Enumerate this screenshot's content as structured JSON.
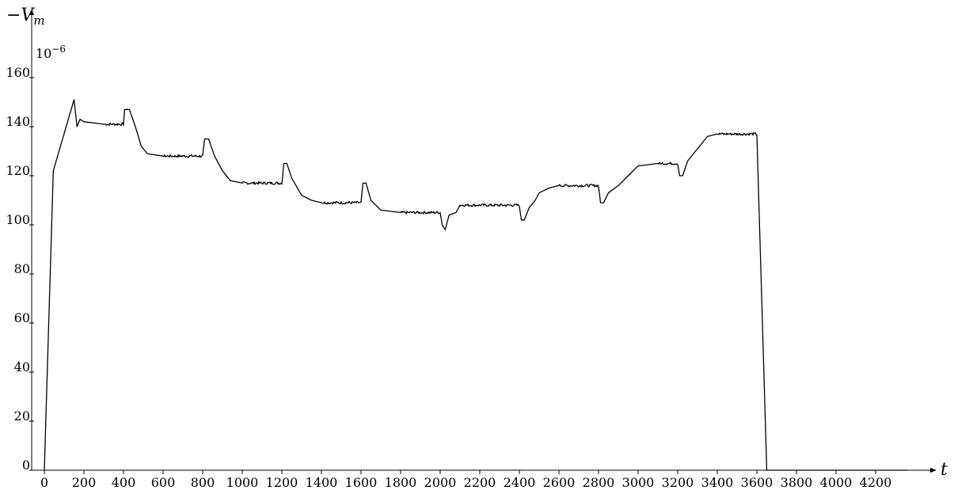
{
  "chart_data": {
    "type": "line",
    "ylabel_main": "−V",
    "ylabel_sub": "m",
    "xlabel": "t",
    "y_scale_label": "10",
    "y_scale_exp": "−6",
    "xlim": [
      -40,
      4360
    ],
    "ylim": [
      0,
      172
    ],
    "x_ticks": [
      0,
      200,
      400,
      600,
      800,
      1000,
      1200,
      1400,
      1600,
      1800,
      2000,
      2200,
      2400,
      2600,
      2800,
      3000,
      3200,
      3400,
      3600,
      3800,
      4000,
      4200
    ],
    "y_ticks": [
      0,
      20,
      40,
      60,
      80,
      100,
      120,
      140,
      160
    ],
    "grid": false,
    "series": [
      {
        "color": "#000000",
        "points": [
          [
            0,
            0
          ],
          [
            45,
            122
          ],
          [
            150,
            151
          ],
          [
            165,
            140
          ],
          [
            180,
            143
          ],
          [
            200,
            142
          ],
          [
            300,
            141
          ],
          [
            400,
            141
          ],
          [
            405,
            147
          ],
          [
            430,
            147
          ],
          [
            460,
            140
          ],
          [
            490,
            132
          ],
          [
            520,
            129
          ],
          [
            600,
            128
          ],
          [
            700,
            128
          ],
          [
            800,
            128
          ],
          [
            810,
            135
          ],
          [
            830,
            135
          ],
          [
            860,
            128
          ],
          [
            900,
            122
          ],
          [
            940,
            118
          ],
          [
            1000,
            117
          ],
          [
            1100,
            117
          ],
          [
            1200,
            117
          ],
          [
            1210,
            125
          ],
          [
            1225,
            125
          ],
          [
            1250,
            119
          ],
          [
            1300,
            112
          ],
          [
            1350,
            110
          ],
          [
            1400,
            109
          ],
          [
            1500,
            109
          ],
          [
            1600,
            109
          ],
          [
            1610,
            117
          ],
          [
            1625,
            117
          ],
          [
            1650,
            110
          ],
          [
            1700,
            106
          ],
          [
            1800,
            105
          ],
          [
            1900,
            105
          ],
          [
            2000,
            105
          ],
          [
            2010,
            100
          ],
          [
            2025,
            98
          ],
          [
            2045,
            104
          ],
          [
            2080,
            105
          ],
          [
            2100,
            108
          ],
          [
            2200,
            108
          ],
          [
            2300,
            108
          ],
          [
            2400,
            108
          ],
          [
            2410,
            102
          ],
          [
            2425,
            102
          ],
          [
            2450,
            107
          ],
          [
            2480,
            110
          ],
          [
            2500,
            113
          ],
          [
            2550,
            115
          ],
          [
            2600,
            116
          ],
          [
            2700,
            116
          ],
          [
            2800,
            116
          ],
          [
            2810,
            109
          ],
          [
            2825,
            109
          ],
          [
            2850,
            113
          ],
          [
            2900,
            116
          ],
          [
            2950,
            120
          ],
          [
            3000,
            124
          ],
          [
            3100,
            125
          ],
          [
            3200,
            125
          ],
          [
            3210,
            120
          ],
          [
            3225,
            120
          ],
          [
            3250,
            126
          ],
          [
            3300,
            131
          ],
          [
            3350,
            136
          ],
          [
            3400,
            137
          ],
          [
            3500,
            137
          ],
          [
            3600,
            137
          ],
          [
            3650,
            0
          ],
          [
            4200,
            0
          ],
          [
            4360,
            0
          ]
        ]
      }
    ]
  }
}
